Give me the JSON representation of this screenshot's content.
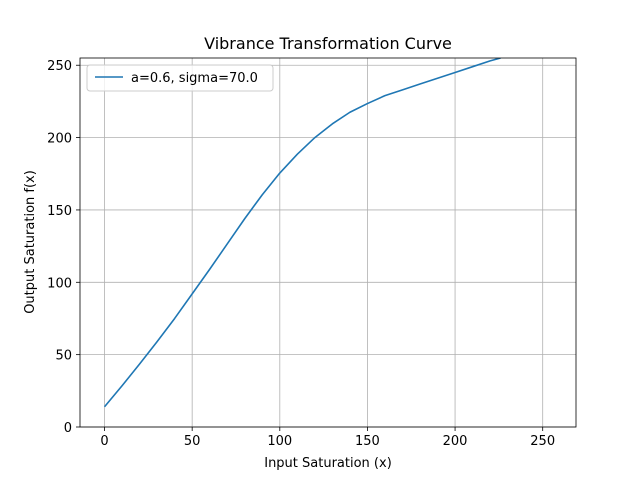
{
  "chart_data": {
    "type": "line",
    "title": "Vibrance Transformation Curve",
    "xlabel": "Input Saturation (x)",
    "ylabel": "Output Saturation f(x)",
    "xlim": [
      -14,
      269
    ],
    "ylim": [
      0,
      255
    ],
    "xticks": [
      0,
      50,
      100,
      150,
      200,
      250
    ],
    "yticks": [
      0,
      50,
      100,
      150,
      200,
      250
    ],
    "grid": true,
    "legend_position": "top-left",
    "series": [
      {
        "name": "a=0.6, sigma=70.0",
        "color": "#1f77b4",
        "x": [
          0,
          10,
          20,
          30,
          40,
          50,
          60,
          70,
          80,
          90,
          100,
          110,
          120,
          130,
          140,
          150,
          160,
          170,
          180,
          190,
          200,
          210,
          220,
          226
        ],
        "y": [
          14,
          28.5,
          43.5,
          59,
          75,
          92,
          109,
          126.5,
          144,
          160.5,
          175.5,
          188.5,
          200,
          209.5,
          217.5,
          223.5,
          229,
          233,
          237,
          241,
          245,
          249,
          253,
          255
        ]
      }
    ]
  }
}
